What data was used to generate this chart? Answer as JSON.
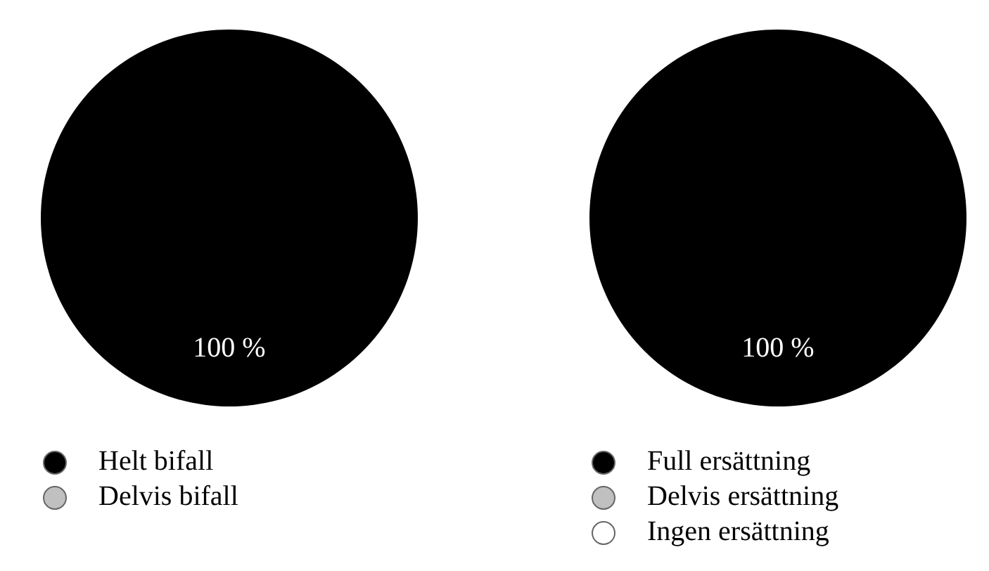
{
  "chart_data": [
    {
      "type": "pie",
      "categories": [
        "Helt bifall",
        "Delvis bifall"
      ],
      "values": [
        100,
        0
      ],
      "colors": [
        "#000000",
        "#c0c0c0"
      ],
      "value_labels": [
        "100 %",
        null
      ],
      "legend": "bottom"
    },
    {
      "type": "pie",
      "categories": [
        "Full ersättning",
        "Delvis ersättning",
        "Ingen ersättning"
      ],
      "values": [
        100,
        0,
        0
      ],
      "colors": [
        "#000000",
        "#c0c0c0",
        "#ffffff"
      ],
      "value_labels": [
        "100 %",
        null,
        null
      ],
      "legend": "bottom"
    }
  ]
}
